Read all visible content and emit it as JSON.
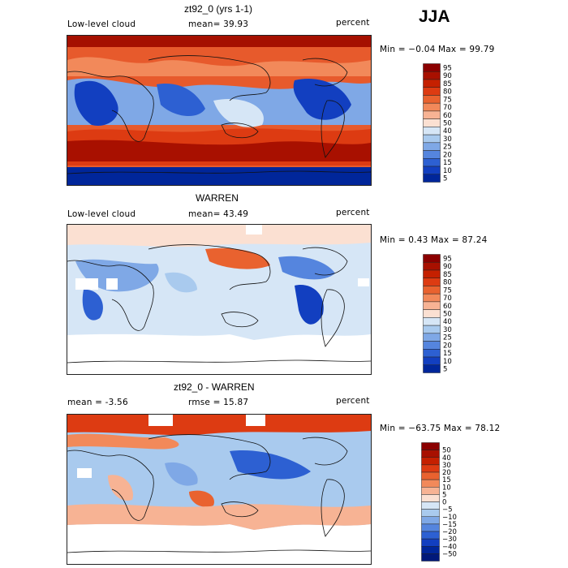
{
  "season": "JJA",
  "panels": [
    {
      "title": "zt92_0 (yrs 1-1)",
      "left": "Low-level cloud",
      "mid": "mean=  39.93",
      "right": "percent",
      "minmax": "Min =  −0.04  Max =  99.79"
    },
    {
      "title": "WARREN",
      "left": "Low-level cloud",
      "mid": "mean=  43.49",
      "right": "percent",
      "minmax": "Min =   0.43  Max =  87.24"
    },
    {
      "title": "zt92_0 - WARREN",
      "left": "mean =   -3.56",
      "mid": "rmse =  15.87",
      "right": "percent",
      "minmax": "Min = −63.75  Max =  78.12"
    }
  ],
  "chart_data": [
    {
      "type": "heatmap",
      "title": "zt92_0 (yrs 1-1)",
      "variable": "Low-level cloud",
      "units": "percent",
      "mean": 39.93,
      "min": -0.04,
      "max": 99.79,
      "levels": [
        "95",
        "90",
        "85",
        "80",
        "75",
        "70",
        "60",
        "50",
        "40",
        "30",
        "25",
        "20",
        "15",
        "10",
        "5"
      ],
      "colors": [
        "#8b0000",
        "#a81000",
        "#c52000",
        "#dd3b12",
        "#e9622f",
        "#f2895a",
        "#f7b394",
        "#fbe0d2",
        "#d6e6f6",
        "#a9caee",
        "#7fa8e6",
        "#5585de",
        "#2d60d2",
        "#123fc0",
        "#00269a"
      ]
    },
    {
      "type": "heatmap",
      "title": "WARREN",
      "variable": "Low-level cloud",
      "units": "percent",
      "mean": 43.49,
      "min": 0.43,
      "max": 87.24,
      "levels": [
        "95",
        "90",
        "85",
        "80",
        "75",
        "70",
        "60",
        "50",
        "40",
        "30",
        "25",
        "20",
        "15",
        "10",
        "5"
      ],
      "colors": [
        "#8b0000",
        "#a81000",
        "#c52000",
        "#dd3b12",
        "#e9622f",
        "#f2895a",
        "#f7b394",
        "#fbe0d2",
        "#d6e6f6",
        "#a9caee",
        "#7fa8e6",
        "#5585de",
        "#2d60d2",
        "#123fc0",
        "#00269a"
      ]
    },
    {
      "type": "heatmap",
      "title": "zt92_0 - WARREN",
      "units": "percent",
      "mean": -3.56,
      "rmse": 15.87,
      "min": -63.75,
      "max": 78.12,
      "levels": [
        "50",
        "40",
        "30",
        "20",
        "15",
        "10",
        "5",
        "0",
        "−5",
        "−10",
        "−15",
        "−20",
        "−30",
        "−40",
        "−50"
      ],
      "colors": [
        "#8b0000",
        "#a81000",
        "#c52000",
        "#dd3b12",
        "#e9622f",
        "#f2895a",
        "#f7b394",
        "#fbe0d2",
        "#d6e6f6",
        "#a9caee",
        "#7fa8e6",
        "#5585de",
        "#2d60d2",
        "#123fc0",
        "#00269a",
        "#00187a"
      ]
    }
  ]
}
